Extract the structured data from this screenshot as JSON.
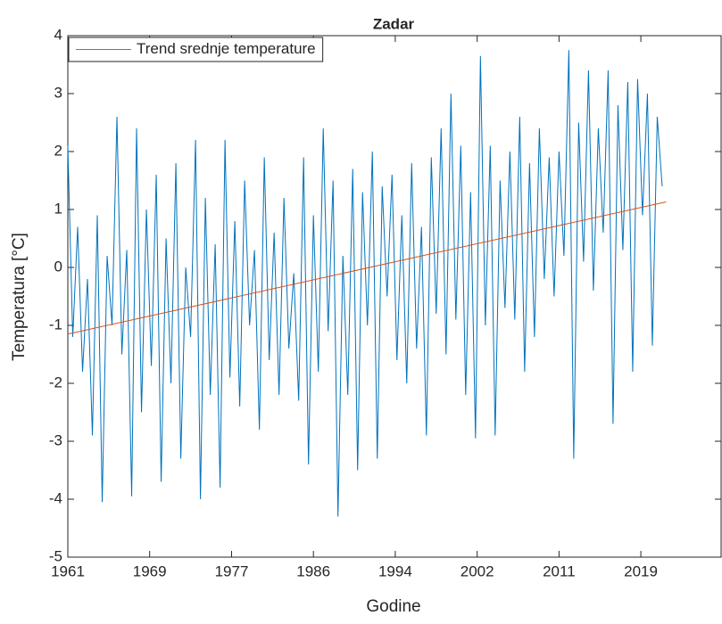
{
  "chart_data": {
    "type": "line",
    "title": "Zadar",
    "xlabel": "Godine",
    "ylabel": "Temperatura [°C]",
    "xlim": [
      1961,
      2027.5
    ],
    "ylim": [
      -5,
      4
    ],
    "xticks": [
      1961,
      {
        "value": 1969.33,
        "label": "1969"
      },
      {
        "value": 1977.67,
        "label": "1977"
      },
      1986,
      {
        "value": 1994.33,
        "label": "1994"
      },
      {
        "value": 2002.67,
        "label": "2002"
      },
      2011,
      {
        "value": 2019.33,
        "label": "2019"
      }
    ],
    "yticks": [
      -5,
      -4,
      -3,
      -2,
      -1,
      0,
      1,
      2,
      3,
      4
    ],
    "grid": false,
    "legend": "upper left",
    "series": [
      {
        "color": "#0072bd",
        "x": [
          1961,
          1961.5,
          1962,
          1962.5,
          1963,
          1963.5,
          1964,
          1964.5,
          1965,
          1965.5,
          1966,
          1966.5,
          1967,
          1967.5,
          1968,
          1968.5,
          1969,
          1969.5,
          1970,
          1970.5,
          1971,
          1971.5,
          1972,
          1972.5,
          1973,
          1973.5,
          1974,
          1974.5,
          1975,
          1975.5,
          1976,
          1976.5,
          1977,
          1977.5,
          1978,
          1978.5,
          1979,
          1979.5,
          1980,
          1980.5,
          1981,
          1981.5,
          1982,
          1982.5,
          1983,
          1983.5,
          1984,
          1984.5,
          1985,
          1985.5,
          1986,
          1986.5,
          1987,
          1987.5,
          1988,
          1988.5,
          1989,
          1989.5,
          1990,
          1990.5,
          1991,
          1991.5,
          1992,
          1992.5,
          1993,
          1993.5,
          1994,
          1994.5,
          1995,
          1995.5,
          1996,
          1996.5,
          1997,
          1997.5,
          1998,
          1998.5,
          1999,
          1999.5,
          2000,
          2000.5,
          2001,
          2001.5,
          2002,
          2002.5,
          2003,
          2003.5,
          2004,
          2004.5,
          2005,
          2005.5,
          2006,
          2006.5,
          2007,
          2007.5,
          2008,
          2008.5,
          2009,
          2009.5,
          2010,
          2010.5,
          2011,
          2011.5,
          2012,
          2012.5,
          2013,
          2013.5,
          2014,
          2014.5,
          2015,
          2015.5,
          2016,
          2016.5,
          2017,
          2017.5,
          2018,
          2018.5,
          2019,
          2019.5,
          2020,
          2020.5,
          2021,
          2021.5
        ],
        "values": [
          2.1,
          -1.2,
          0.7,
          -1.8,
          -0.2,
          -2.9,
          0.9,
          -4.05,
          0.2,
          -1.0,
          2.6,
          -1.5,
          0.3,
          -3.95,
          2.4,
          -2.5,
          1.0,
          -1.7,
          1.6,
          -3.7,
          0.5,
          -2.0,
          1.8,
          -3.3,
          0.0,
          -1.2,
          2.2,
          -4.0,
          1.2,
          -2.2,
          0.4,
          -3.8,
          2.2,
          -1.9,
          0.8,
          -2.4,
          1.5,
          -1.0,
          0.3,
          -2.8,
          1.9,
          -1.6,
          0.6,
          -2.2,
          1.2,
          -1.4,
          -0.1,
          -2.3,
          1.9,
          -3.4,
          0.9,
          -1.8,
          2.4,
          -1.1,
          1.5,
          -4.3,
          0.2,
          -2.2,
          1.7,
          -3.5,
          1.3,
          -1.0,
          2.0,
          -3.3,
          1.4,
          -0.5,
          1.6,
          -1.6,
          0.9,
          -2.0,
          1.8,
          -1.4,
          0.7,
          -2.9,
          1.9,
          -0.8,
          2.4,
          -1.5,
          3.0,
          -0.9,
          2.1,
          -2.2,
          1.3,
          -2.95,
          3.65,
          -1.0,
          2.1,
          -2.9,
          1.5,
          -0.7,
          2.0,
          -0.9,
          2.6,
          -1.8,
          1.8,
          -1.2,
          2.4,
          -0.2,
          1.9,
          -0.5,
          2.0,
          0.2,
          3.75,
          -3.3,
          2.5,
          0.1,
          3.4,
          -0.4,
          2.4,
          0.6,
          3.4,
          -2.7,
          2.8,
          0.3,
          3.2,
          -1.8,
          3.25,
          0.9,
          3.0,
          -1.35,
          2.6,
          1.4
        ]
      },
      {
        "name": "Trend srednje temperature",
        "color": "#d95319",
        "x": [
          1961,
          2021.9
        ],
        "values": [
          -1.15,
          1.13
        ]
      }
    ]
  }
}
